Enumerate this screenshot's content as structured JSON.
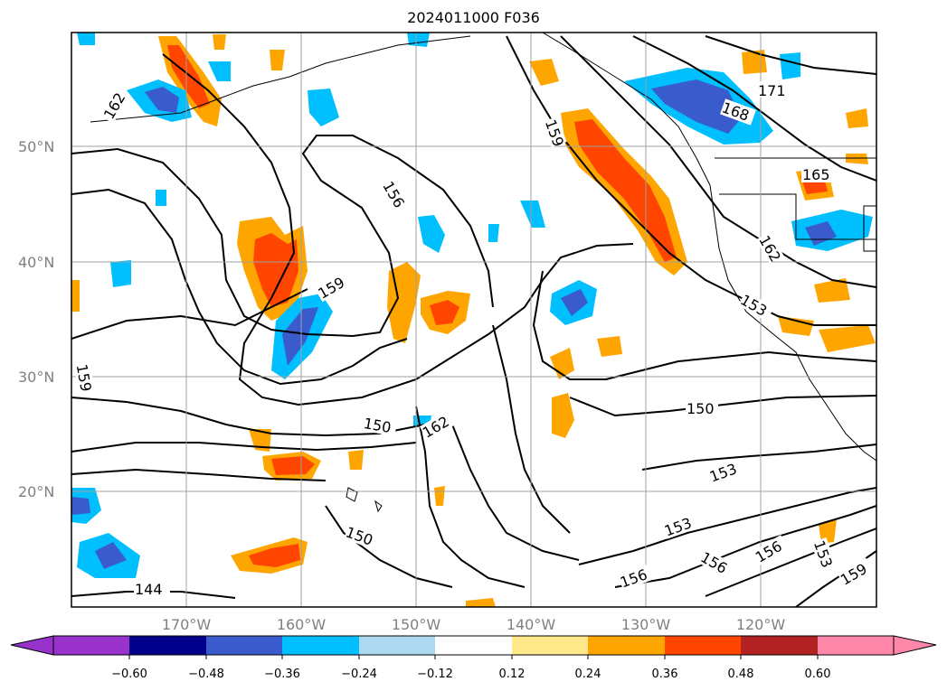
{
  "title": "2024011000 F036",
  "map": {
    "lat_labels": [
      "50°N",
      "40°N",
      "30°N",
      "20°N"
    ],
    "lon_labels": [
      "170°W",
      "160°W",
      "150°W",
      "140°W",
      "130°W",
      "120°W"
    ],
    "contour_labels": [
      "162",
      "156",
      "159",
      "159",
      "159",
      "171",
      "168",
      "165",
      "162",
      "153",
      "150",
      "162",
      "150",
      "153",
      "150",
      "153",
      "156",
      "156",
      "153",
      "156",
      "159",
      "144"
    ],
    "line_color": "#000000",
    "grid_color": "#a0a0a0"
  },
  "colorbar": {
    "ticks": [
      "−0.60",
      "−0.48",
      "−0.36",
      "−0.24",
      "−0.12",
      "0.12",
      "0.24",
      "0.36",
      "0.48",
      "0.60"
    ],
    "colors": [
      "#9932cc",
      "#00008b",
      "#3a5bcc",
      "#00bfff",
      "#add8f0",
      "#ffffff",
      "#ffe98a",
      "#ffa500",
      "#ff4500",
      "#b22222",
      "#ff88aa",
      "#ff88aa"
    ]
  }
}
